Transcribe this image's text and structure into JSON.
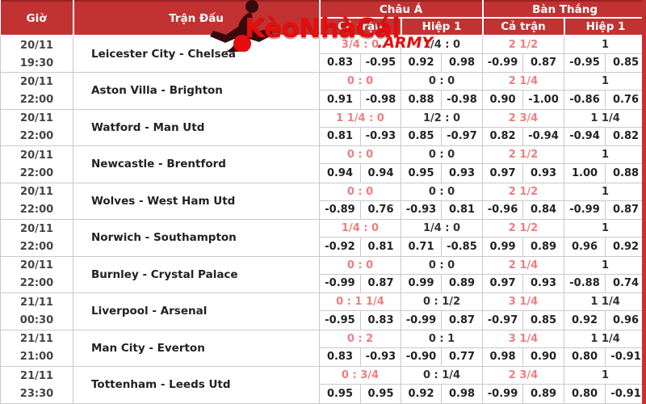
{
  "watermark": {
    "brand": "KèoNhàCái",
    "suffix": ".ARMY"
  },
  "colors": {
    "header_bg": "#c23232",
    "header_top_line": "#9b2121",
    "handicap_full_text": "#ee7e80",
    "watermark_red": "#e50d0d",
    "border_gray": "#c9c9c9"
  },
  "header": {
    "time": "Giờ",
    "match": "Trận Đấu",
    "groups": [
      {
        "label": "Châu Á",
        "cols": [
          "Cả trận",
          "Hiệp 1"
        ]
      },
      {
        "label": "Bàn Thắng",
        "cols": [
          "Cả trận",
          "Hiệp 1"
        ]
      }
    ]
  },
  "matches": [
    {
      "date": "20/11",
      "time": "19:30",
      "teams": "Leicester City - Chelsea",
      "asian_full": "3/4 : 0",
      "asian_h1": "1/4 : 0",
      "goals_full": "2 1/2",
      "goals_h1": "1",
      "odds": [
        "0.83",
        "-0.95",
        "0.92",
        "0.98",
        "-0.99",
        "0.87",
        "-0.95",
        "0.85"
      ]
    },
    {
      "date": "20/11",
      "time": "22:00",
      "teams": "Aston Villa - Brighton",
      "asian_full": "0 : 0",
      "asian_h1": "0 : 0",
      "goals_full": "2 1/4",
      "goals_h1": "1",
      "odds": [
        "0.91",
        "-0.98",
        "0.88",
        "-0.98",
        "0.90",
        "-1.00",
        "-0.86",
        "0.76"
      ]
    },
    {
      "date": "20/11",
      "time": "22:00",
      "teams": "Watford - Man Utd",
      "asian_full": "1 1/4 : 0",
      "asian_h1": "1/2 : 0",
      "goals_full": "2 3/4",
      "goals_h1": "1 1/4",
      "odds": [
        "0.81",
        "-0.93",
        "0.85",
        "-0.97",
        "0.82",
        "-0.94",
        "-0.94",
        "0.82"
      ]
    },
    {
      "date": "20/11",
      "time": "22:00",
      "teams": "Newcastle - Brentford",
      "asian_full": "0 : 0",
      "asian_h1": "0 : 0",
      "goals_full": "2 1/2",
      "goals_h1": "1",
      "odds": [
        "0.94",
        "0.94",
        "0.95",
        "0.93",
        "0.97",
        "0.93",
        "1.00",
        "0.88"
      ]
    },
    {
      "date": "20/11",
      "time": "22:00",
      "teams": "Wolves - West Ham Utd",
      "asian_full": "0 : 0",
      "asian_h1": "0 : 0",
      "goals_full": "2 1/2",
      "goals_h1": "1",
      "odds": [
        "-0.89",
        "0.76",
        "-0.93",
        "0.81",
        "-0.96",
        "0.84",
        "-0.99",
        "0.87"
      ]
    },
    {
      "date": "20/11",
      "time": "22:00",
      "teams": "Norwich - Southampton",
      "asian_full": "1/4 : 0",
      "asian_h1": "1/4 : 0",
      "goals_full": "2 1/2",
      "goals_h1": "1",
      "odds": [
        "-0.92",
        "0.81",
        "0.71",
        "-0.85",
        "0.99",
        "0.89",
        "0.96",
        "0.92"
      ]
    },
    {
      "date": "20/11",
      "time": "22:00",
      "teams": "Burnley - Crystal Palace",
      "asian_full": "0 : 0",
      "asian_h1": "0 : 0",
      "goals_full": "2 1/4",
      "goals_h1": "1",
      "odds": [
        "-0.99",
        "0.87",
        "0.99",
        "0.89",
        "0.97",
        "0.93",
        "-0.88",
        "0.74"
      ]
    },
    {
      "date": "21/11",
      "time": "00:30",
      "teams": "Liverpool - Arsenal",
      "asian_full": "0 : 1 1/4",
      "asian_h1": "0 : 1/2",
      "goals_full": "3 1/4",
      "goals_h1": "1 1/4",
      "odds": [
        "-0.95",
        "0.83",
        "-0.99",
        "0.87",
        "-0.97",
        "0.85",
        "0.92",
        "0.96"
      ]
    },
    {
      "date": "21/11",
      "time": "21:00",
      "teams": "Man City - Everton",
      "asian_full": "0 : 2",
      "asian_h1": "0 : 1",
      "goals_full": "3 1/4",
      "goals_h1": "1 1/4",
      "odds": [
        "0.83",
        "-0.93",
        "-0.90",
        "0.77",
        "0.98",
        "0.90",
        "0.80",
        "-0.91"
      ]
    },
    {
      "date": "21/11",
      "time": "23:30",
      "teams": "Tottenham - Leeds Utd",
      "asian_full": "0 : 3/4",
      "asian_h1": "0 : 1/4",
      "goals_full": "2 3/4",
      "goals_h1": "1",
      "odds": [
        "0.95",
        "0.95",
        "0.92",
        "0.98",
        "-0.99",
        "0.89",
        "0.80",
        "-0.91"
      ]
    }
  ]
}
